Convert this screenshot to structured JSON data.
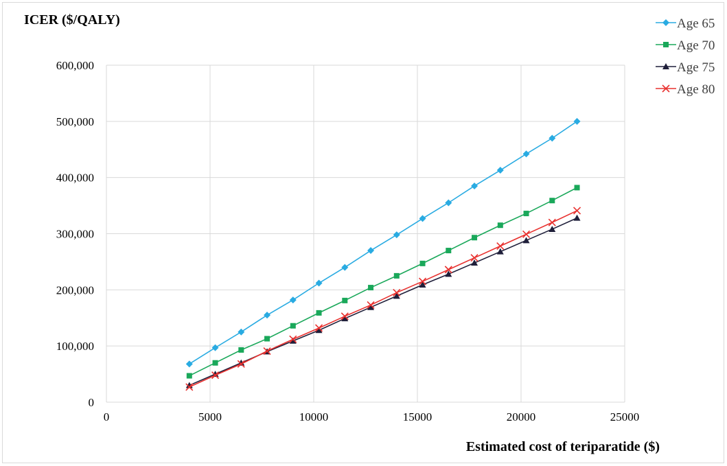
{
  "chart_data": {
    "type": "line",
    "ylabel": "ICER ($/QALY)",
    "xlabel": "Estimated cost of teriparatide ($)",
    "xlim": [
      0,
      25000
    ],
    "ylim": [
      0,
      600000
    ],
    "x_ticks": [
      0,
      5000,
      10000,
      15000,
      20000,
      25000
    ],
    "x_tick_labels": [
      "0",
      "5000",
      "10000",
      "15000",
      "20000",
      "25000"
    ],
    "y_ticks": [
      0,
      100000,
      200000,
      300000,
      400000,
      500000,
      600000
    ],
    "y_tick_labels": [
      "0",
      "100,000",
      "200,000",
      "300,000",
      "400,000",
      "500,000",
      "600,000"
    ],
    "grid": true,
    "legend_position": "top-right",
    "x": [
      4000,
      5250,
      6500,
      7750,
      9000,
      10250,
      11500,
      12750,
      14000,
      15250,
      16500,
      17750,
      19000,
      20250,
      21500,
      22700
    ],
    "series": [
      {
        "name": "Age 65",
        "color": "#29abe2",
        "marker": "diamond",
        "values": [
          68000,
          97000,
          125000,
          155000,
          182000,
          212000,
          240000,
          270000,
          298000,
          327000,
          355000,
          385000,
          413000,
          442000,
          470000,
          500000
        ]
      },
      {
        "name": "Age 70",
        "color": "#1aa85a",
        "marker": "square",
        "values": [
          47000,
          70000,
          93000,
          113000,
          136000,
          159000,
          181000,
          204000,
          225000,
          247000,
          270000,
          293000,
          315000,
          336000,
          359000,
          382000
        ]
      },
      {
        "name": "Age 75",
        "color": "#1f1f3a",
        "marker": "triangle",
        "values": [
          30000,
          50000,
          70000,
          90000,
          109000,
          128000,
          149000,
          169000,
          189000,
          209000,
          228000,
          248000,
          268000,
          288000,
          308000,
          328000
        ]
      },
      {
        "name": "Age 80",
        "color": "#e8312f",
        "marker": "x",
        "values": [
          27000,
          48000,
          68000,
          91000,
          112000,
          132000,
          153000,
          173000,
          195000,
          215000,
          236000,
          257000,
          278000,
          299000,
          320000,
          341000
        ]
      }
    ]
  }
}
